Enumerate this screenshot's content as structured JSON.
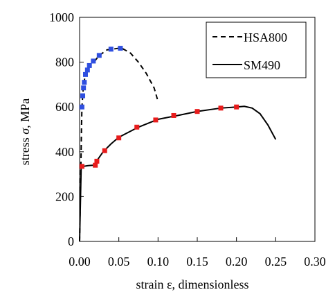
{
  "chart_data": {
    "type": "line",
    "xlabel": "strain ε, dimensionless",
    "ylabel_prefix": "stress ",
    "ylabel_symbol": "σ",
    "ylabel_suffix": ", MPa",
    "xlim": [
      0,
      0.3
    ],
    "ylim": [
      0,
      1000
    ],
    "x_ticks": [
      0,
      0.05,
      0.1,
      0.15,
      0.2,
      0.25,
      0.3
    ],
    "x_tick_labels": [
      "0.00",
      "0.05",
      "0.10",
      "0.15",
      "0.20",
      "0.25",
      "0.30"
    ],
    "y_ticks": [
      0,
      200,
      400,
      600,
      800,
      1000
    ],
    "y_tick_labels": [
      "0",
      "200",
      "400",
      "600",
      "800",
      "1000"
    ],
    "grid": false,
    "legend_position": "top-right",
    "series": [
      {
        "name": "HSA800",
        "line_style": "dashed",
        "line_color": "#000000",
        "marker_color": "#2f4fe0",
        "curve": [
          [
            0,
            0
          ],
          [
            0.0015,
            300
          ],
          [
            0.0025,
            520
          ],
          [
            0.003,
            600
          ],
          [
            0.004,
            650
          ],
          [
            0.005,
            700
          ],
          [
            0.0075,
            745
          ],
          [
            0.01,
            765
          ],
          [
            0.0125,
            785
          ],
          [
            0.02,
            808
          ],
          [
            0.025,
            830
          ],
          [
            0.035,
            855
          ],
          [
            0.05,
            862
          ],
          [
            0.055,
            860
          ],
          [
            0.065,
            840
          ],
          [
            0.075,
            800
          ],
          [
            0.085,
            750
          ],
          [
            0.095,
            685
          ],
          [
            0.1,
            625
          ]
        ],
        "markers": [
          [
            0.003,
            600
          ],
          [
            0.004,
            650
          ],
          [
            0.005,
            685
          ],
          [
            0.006,
            710
          ],
          [
            0.0075,
            745
          ],
          [
            0.01,
            765
          ],
          [
            0.0125,
            785
          ],
          [
            0.0175,
            805
          ],
          [
            0.025,
            830
          ],
          [
            0.04,
            858
          ],
          [
            0.052,
            862
          ]
        ]
      },
      {
        "name": "SM490",
        "line_style": "solid",
        "line_color": "#000000",
        "marker_color": "#e81c1c",
        "curve": [
          [
            0,
            0
          ],
          [
            0.002,
            330
          ],
          [
            0.005,
            335
          ],
          [
            0.01,
            338
          ],
          [
            0.018,
            340
          ],
          [
            0.02,
            345
          ],
          [
            0.022,
            360
          ],
          [
            0.03,
            400
          ],
          [
            0.04,
            435
          ],
          [
            0.05,
            465
          ],
          [
            0.075,
            510
          ],
          [
            0.1,
            545
          ],
          [
            0.125,
            562
          ],
          [
            0.15,
            580
          ],
          [
            0.18,
            595
          ],
          [
            0.2,
            600
          ],
          [
            0.21,
            603
          ],
          [
            0.22,
            595
          ],
          [
            0.23,
            570
          ],
          [
            0.24,
            520
          ],
          [
            0.25,
            455
          ]
        ],
        "markers": [
          [
            0.003,
            335
          ],
          [
            0.02,
            340
          ],
          [
            0.022,
            358
          ],
          [
            0.032,
            405
          ],
          [
            0.05,
            462
          ],
          [
            0.073,
            510
          ],
          [
            0.097,
            542
          ],
          [
            0.12,
            562
          ],
          [
            0.15,
            580
          ],
          [
            0.18,
            595
          ],
          [
            0.2,
            600
          ]
        ]
      }
    ]
  }
}
